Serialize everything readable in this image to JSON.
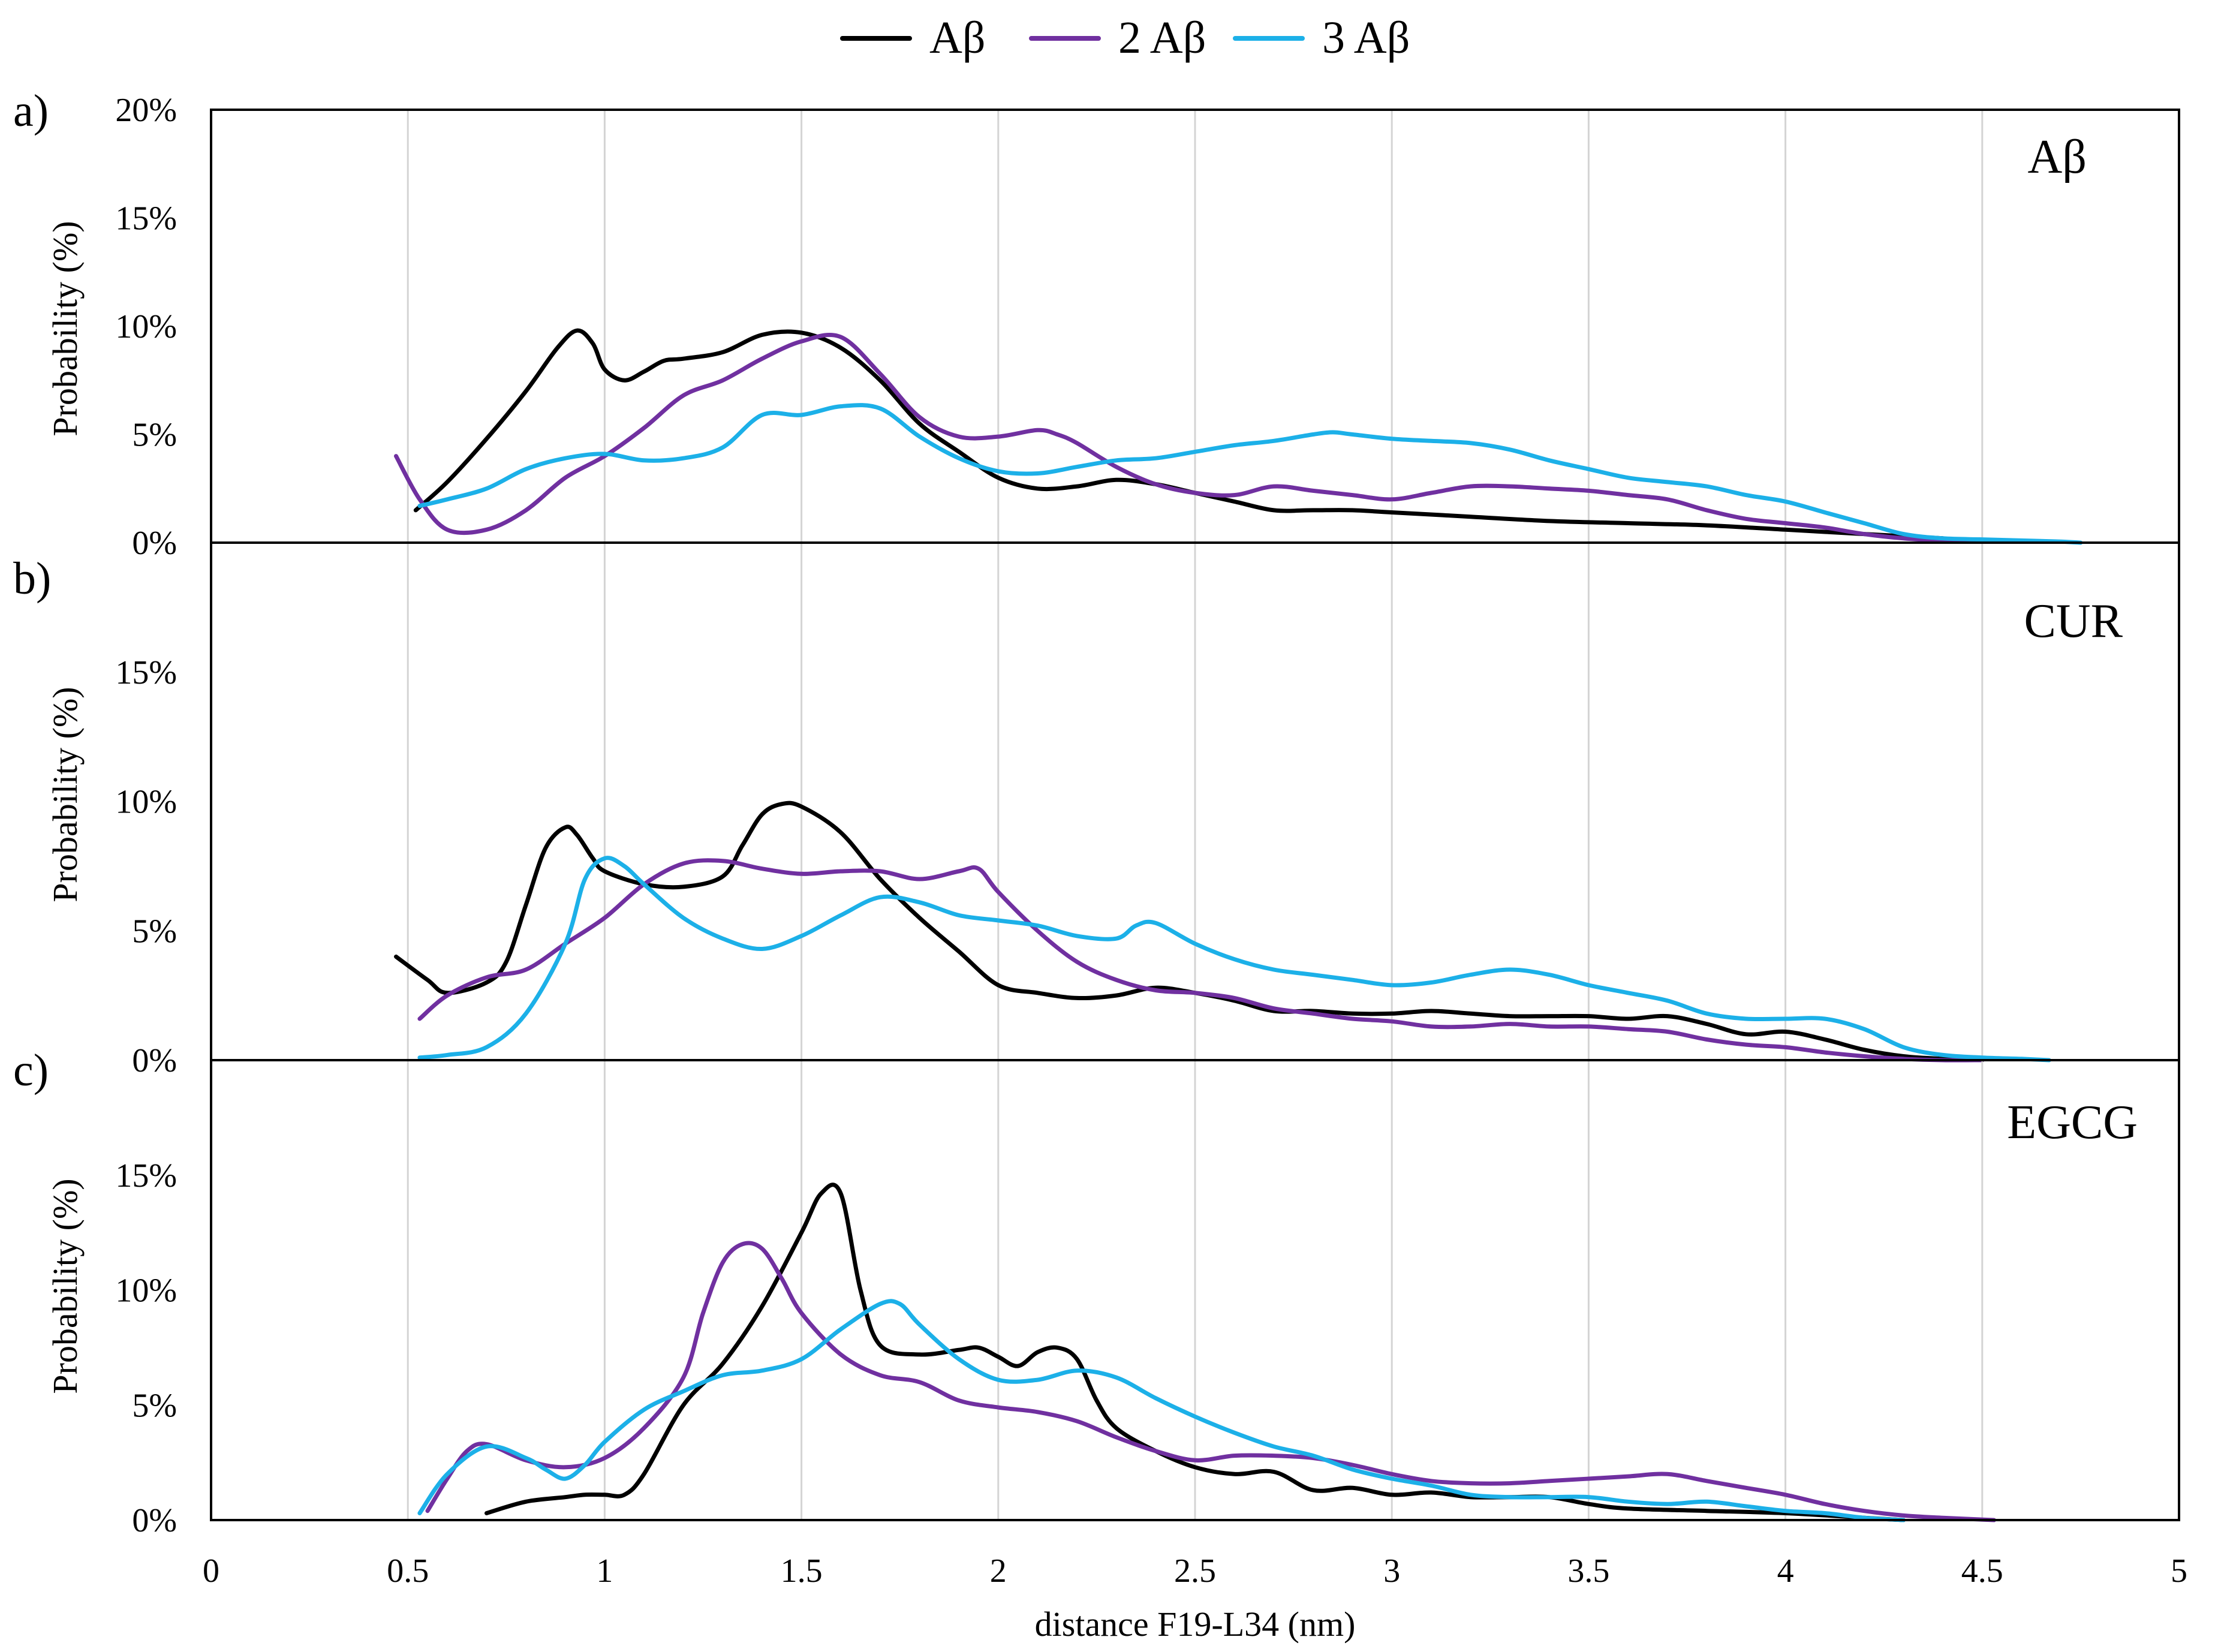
{
  "chart_data": {
    "type": "line",
    "legend": {
      "placement": "top-center",
      "entries": [
        {
          "name": "Aβ",
          "color": "#000000"
        },
        {
          "name": "2 Aβ",
          "color": "#7030A0"
        },
        {
          "name": "3 Aβ",
          "color": "#1CB0E8"
        }
      ]
    },
    "xlabel": "distance F19-L34 (nm)",
    "xlim": [
      0,
      5
    ],
    "xticks": [
      "0",
      "0.5",
      "1",
      "1.5",
      "2",
      "2.5",
      "3",
      "3.5",
      "4",
      "4.5",
      "5"
    ],
    "panels": [
      {
        "letter": "a)",
        "title": "Aβ",
        "ylabel": "Probability (%)",
        "ylim": [
          0,
          20
        ],
        "yticks": [
          "0%",
          "5%",
          "10%",
          "15%",
          "20%"
        ],
        "series": [
          {
            "name": "Aβ",
            "x": [
              0.52,
              0.6,
              0.7,
              0.8,
              0.88,
              0.93,
              0.97,
              1.0,
              1.05,
              1.1,
              1.15,
              1.2,
              1.3,
              1.4,
              1.5,
              1.6,
              1.7,
              1.8,
              1.9,
              2.0,
              2.1,
              2.2,
              2.3,
              2.4,
              2.5,
              2.6,
              2.7,
              2.8,
              2.9,
              3.0,
              3.2,
              3.4,
              3.6,
              3.8,
              4.0,
              4.2,
              4.4
            ],
            "y": [
              1.5,
              2.8,
              4.8,
              7.0,
              9.0,
              9.8,
              9.2,
              8.0,
              7.5,
              7.9,
              8.4,
              8.5,
              8.8,
              9.6,
              9.7,
              9.0,
              7.5,
              5.5,
              4.2,
              3.0,
              2.5,
              2.6,
              2.9,
              2.7,
              2.3,
              1.9,
              1.5,
              1.5,
              1.5,
              1.4,
              1.2,
              1.0,
              0.9,
              0.8,
              0.6,
              0.4,
              0.2
            ]
          },
          {
            "name": "2 Aβ",
            "x": [
              0.47,
              0.53,
              0.6,
              0.7,
              0.8,
              0.9,
              1.0,
              1.1,
              1.2,
              1.3,
              1.4,
              1.5,
              1.6,
              1.7,
              1.8,
              1.9,
              2.0,
              2.1,
              2.15,
              2.2,
              2.3,
              2.4,
              2.5,
              2.6,
              2.7,
              2.8,
              2.9,
              3.0,
              3.1,
              3.2,
              3.3,
              3.4,
              3.5,
              3.6,
              3.7,
              3.8,
              3.9,
              4.0,
              4.1,
              4.2,
              4.3,
              4.4,
              4.5
            ],
            "y": [
              4.0,
              2.0,
              0.6,
              0.6,
              1.5,
              3.0,
              4.0,
              5.3,
              6.8,
              7.5,
              8.5,
              9.3,
              9.5,
              7.8,
              5.8,
              4.9,
              4.9,
              5.2,
              5.0,
              4.6,
              3.5,
              2.7,
              2.3,
              2.2,
              2.6,
              2.4,
              2.2,
              2.0,
              2.3,
              2.6,
              2.6,
              2.5,
              2.4,
              2.2,
              2.0,
              1.5,
              1.1,
              0.9,
              0.7,
              0.4,
              0.2,
              0.1,
              0.05
            ]
          },
          {
            "name": "3 Aβ",
            "x": [
              0.53,
              0.6,
              0.7,
              0.8,
              0.9,
              1.0,
              1.1,
              1.2,
              1.3,
              1.4,
              1.5,
              1.6,
              1.7,
              1.8,
              1.9,
              2.0,
              2.1,
              2.2,
              2.3,
              2.4,
              2.5,
              2.6,
              2.7,
              2.8,
              2.85,
              2.9,
              3.0,
              3.1,
              3.2,
              3.3,
              3.4,
              3.5,
              3.6,
              3.7,
              3.8,
              3.9,
              4.0,
              4.1,
              4.2,
              4.3,
              4.4,
              4.5,
              4.6,
              4.7,
              4.75
            ],
            "y": [
              1.7,
              2.0,
              2.5,
              3.4,
              3.9,
              4.1,
              3.8,
              3.9,
              4.4,
              5.9,
              5.9,
              6.3,
              6.2,
              4.9,
              3.9,
              3.3,
              3.2,
              3.5,
              3.8,
              3.9,
              4.2,
              4.5,
              4.7,
              5.0,
              5.1,
              5.0,
              4.8,
              4.7,
              4.6,
              4.3,
              3.8,
              3.4,
              3.0,
              2.8,
              2.6,
              2.2,
              1.9,
              1.4,
              0.9,
              0.4,
              0.2,
              0.15,
              0.1,
              0.05,
              0.0
            ]
          }
        ]
      },
      {
        "letter": "b)",
        "title": "CUR",
        "ylabel": "Probability (%)",
        "ylim": [
          0,
          20
        ],
        "yticks": [
          "0%",
          "5%",
          "10%",
          "15%"
        ],
        "series": [
          {
            "name": "Aβ",
            "x": [
              0.47,
              0.55,
              0.6,
              0.7,
              0.75,
              0.8,
              0.85,
              0.9,
              0.93,
              0.97,
              1.0,
              1.1,
              1.2,
              1.3,
              1.35,
              1.4,
              1.45,
              1.5,
              1.6,
              1.7,
              1.8,
              1.9,
              2.0,
              2.1,
              2.2,
              2.3,
              2.4,
              2.5,
              2.6,
              2.7,
              2.8,
              2.9,
              3.0,
              3.1,
              3.2,
              3.3,
              3.4,
              3.5,
              3.6,
              3.7,
              3.8,
              3.9,
              4.0,
              4.1,
              4.2,
              4.3,
              4.4,
              4.5
            ],
            "y": [
              4.0,
              3.1,
              2.6,
              3.0,
              3.8,
              6.0,
              8.2,
              9.0,
              8.7,
              7.8,
              7.3,
              6.8,
              6.7,
              7.1,
              8.3,
              9.5,
              9.9,
              9.8,
              8.8,
              7.0,
              5.5,
              4.2,
              2.9,
              2.6,
              2.4,
              2.5,
              2.8,
              2.6,
              2.3,
              1.9,
              1.9,
              1.8,
              1.8,
              1.9,
              1.8,
              1.7,
              1.7,
              1.7,
              1.6,
              1.7,
              1.4,
              1.0,
              1.1,
              0.8,
              0.4,
              0.15,
              0.05,
              0.0
            ]
          },
          {
            "name": "2 Aβ",
            "x": [
              0.53,
              0.6,
              0.7,
              0.8,
              0.9,
              1.0,
              1.1,
              1.2,
              1.3,
              1.4,
              1.5,
              1.6,
              1.7,
              1.8,
              1.9,
              1.95,
              2.0,
              2.1,
              2.2,
              2.3,
              2.4,
              2.5,
              2.6,
              2.7,
              2.8,
              2.9,
              3.0,
              3.1,
              3.2,
              3.3,
              3.4,
              3.5,
              3.6,
              3.7,
              3.8,
              3.9,
              4.0,
              4.1,
              4.2,
              4.3,
              4.4,
              4.5
            ],
            "y": [
              1.6,
              2.5,
              3.2,
              3.5,
              4.5,
              5.5,
              6.8,
              7.6,
              7.7,
              7.4,
              7.2,
              7.3,
              7.3,
              7.0,
              7.3,
              7.4,
              6.5,
              5.0,
              3.8,
              3.1,
              2.7,
              2.6,
              2.4,
              2.0,
              1.8,
              1.6,
              1.5,
              1.3,
              1.3,
              1.4,
              1.3,
              1.3,
              1.2,
              1.1,
              0.8,
              0.6,
              0.5,
              0.3,
              0.15,
              0.05,
              0.0,
              0.0
            ]
          },
          {
            "name": "3 Aβ",
            "x": [
              0.53,
              0.6,
              0.7,
              0.8,
              0.9,
              0.95,
              1.0,
              1.05,
              1.1,
              1.2,
              1.3,
              1.4,
              1.5,
              1.6,
              1.7,
              1.8,
              1.9,
              2.0,
              2.1,
              2.2,
              2.3,
              2.35,
              2.4,
              2.5,
              2.6,
              2.7,
              2.8,
              2.9,
              3.0,
              3.1,
              3.2,
              3.3,
              3.4,
              3.5,
              3.6,
              3.7,
              3.8,
              3.9,
              4.0,
              4.1,
              4.2,
              4.3,
              4.4,
              4.5,
              4.6,
              4.67
            ],
            "y": [
              0.1,
              0.2,
              0.5,
              1.8,
              4.5,
              7.0,
              7.8,
              7.5,
              6.8,
              5.5,
              4.7,
              4.3,
              4.8,
              5.6,
              6.3,
              6.1,
              5.6,
              5.4,
              5.2,
              4.8,
              4.7,
              5.2,
              5.3,
              4.5,
              3.9,
              3.5,
              3.3,
              3.1,
              2.9,
              3.0,
              3.3,
              3.5,
              3.3,
              2.9,
              2.6,
              2.3,
              1.8,
              1.6,
              1.6,
              1.6,
              1.2,
              0.5,
              0.2,
              0.1,
              0.05,
              0.0
            ]
          }
        ]
      },
      {
        "letter": "c)",
        "title": "EGCG",
        "ylabel": "Probability (%)",
        "ylim": [
          0,
          20
        ],
        "yticks": [
          "0%",
          "5%",
          "10%",
          "15%"
        ],
        "series": [
          {
            "name": "Aβ",
            "x": [
              0.7,
              0.8,
              0.9,
              0.95,
              1.0,
              1.05,
              1.1,
              1.2,
              1.3,
              1.4,
              1.5,
              1.55,
              1.6,
              1.65,
              1.7,
              1.8,
              1.9,
              1.95,
              2.0,
              2.05,
              2.1,
              2.15,
              2.2,
              2.25,
              2.3,
              2.4,
              2.5,
              2.6,
              2.7,
              2.8,
              2.9,
              3.0,
              3.1,
              3.2,
              3.3,
              3.4,
              3.5,
              3.6,
              3.8,
              4.0,
              4.2,
              4.3
            ],
            "y": [
              0.3,
              0.8,
              1.0,
              1.1,
              1.1,
              1.1,
              2.0,
              5.0,
              6.8,
              9.3,
              12.5,
              14.2,
              14.2,
              10.0,
              7.6,
              7.2,
              7.4,
              7.5,
              7.1,
              6.7,
              7.3,
              7.5,
              7.0,
              5.2,
              4.0,
              3.0,
              2.3,
              2.0,
              2.1,
              1.3,
              1.4,
              1.1,
              1.2,
              1.0,
              1.0,
              1.0,
              0.7,
              0.5,
              0.4,
              0.3,
              0.1,
              0.0
            ]
          },
          {
            "name": "2 Aβ",
            "x": [
              0.55,
              0.6,
              0.65,
              0.7,
              0.8,
              0.9,
              1.0,
              1.1,
              1.2,
              1.25,
              1.3,
              1.35,
              1.4,
              1.45,
              1.5,
              1.6,
              1.7,
              1.8,
              1.9,
              2.0,
              2.1,
              2.2,
              2.3,
              2.4,
              2.5,
              2.6,
              2.7,
              2.8,
              2.9,
              3.0,
              3.1,
              3.2,
              3.3,
              3.4,
              3.5,
              3.6,
              3.7,
              3.8,
              3.9,
              4.0,
              4.1,
              4.2,
              4.3,
              4.4,
              4.53
            ],
            "y": [
              0.4,
              1.8,
              3.0,
              3.3,
              2.6,
              2.3,
              2.7,
              4.0,
              6.2,
              9.0,
              11.2,
              12.0,
              11.8,
              10.5,
              9.0,
              7.2,
              6.3,
              6.0,
              5.2,
              4.9,
              4.7,
              4.3,
              3.6,
              3.0,
              2.6,
              2.8,
              2.8,
              2.7,
              2.4,
              2.0,
              1.7,
              1.6,
              1.6,
              1.7,
              1.8,
              1.9,
              2.0,
              1.7,
              1.4,
              1.1,
              0.7,
              0.4,
              0.2,
              0.1,
              0.0
            ]
          },
          {
            "name": "3 Aβ",
            "x": [
              0.53,
              0.6,
              0.7,
              0.8,
              0.85,
              0.9,
              0.95,
              1.0,
              1.1,
              1.2,
              1.3,
              1.4,
              1.5,
              1.6,
              1.7,
              1.75,
              1.8,
              1.9,
              2.0,
              2.1,
              2.2,
              2.3,
              2.4,
              2.5,
              2.6,
              2.7,
              2.8,
              2.9,
              3.0,
              3.1,
              3.2,
              3.3,
              3.4,
              3.5,
              3.6,
              3.7,
              3.8,
              3.9,
              4.0,
              4.1,
              4.2,
              4.3
            ],
            "y": [
              0.3,
              2.0,
              3.2,
              2.7,
              2.2,
              1.8,
              2.4,
              3.4,
              4.8,
              5.6,
              6.3,
              6.5,
              7.0,
              8.3,
              9.4,
              9.4,
              8.5,
              7.0,
              6.1,
              6.1,
              6.5,
              6.2,
              5.3,
              4.5,
              3.8,
              3.2,
              2.8,
              2.2,
              1.8,
              1.5,
              1.1,
              1.0,
              1.0,
              1.0,
              0.8,
              0.7,
              0.8,
              0.6,
              0.4,
              0.3,
              0.1,
              0.0
            ]
          }
        ]
      }
    ]
  }
}
